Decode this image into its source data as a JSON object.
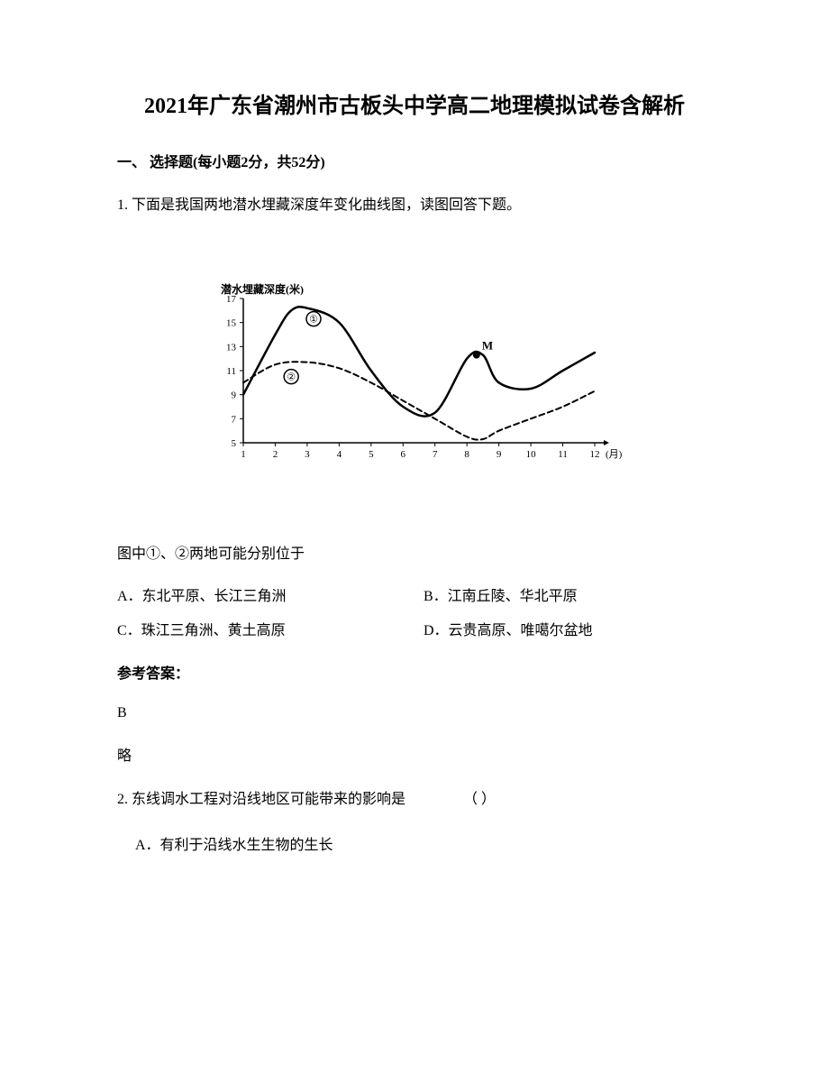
{
  "title": "2021年广东省潮州市古板头中学高二地理模拟试卷含解析",
  "section_header": "一、 选择题(每小题2分，共52分)",
  "question1": {
    "number": "1.",
    "text": "下面是我国两地潜水埋藏深度年变化曲线图，读图回答下题。",
    "sub_question": "图中①、②两地可能分别位于",
    "options": {
      "A": "A．东北平原、长江三角洲",
      "B": "B．江南丘陵、华北平原",
      "C": "C．珠江三角洲、黄土高原",
      "D": "D．云贵高原、唯噶尔盆地"
    }
  },
  "chart": {
    "type": "line",
    "y_axis_title": "潜水埋藏深度(米)",
    "x_axis_title": "(月)",
    "x_values": [
      1,
      2,
      3,
      4,
      5,
      6,
      7,
      8,
      9,
      10,
      11,
      12
    ],
    "y_ticks": [
      5,
      7,
      9,
      11,
      13,
      15,
      17
    ],
    "ylim": [
      5,
      17
    ],
    "xlim": [
      1,
      12
    ],
    "series": [
      {
        "name": "①",
        "label_circle": "①",
        "label_pos": {
          "x": 3.2,
          "y": 15.3
        },
        "style": "solid",
        "line_width": 2.5,
        "color": "#000000",
        "points": [
          {
            "x": 1,
            "y": 9
          },
          {
            "x": 2,
            "y": 14
          },
          {
            "x": 2.5,
            "y": 16
          },
          {
            "x": 3,
            "y": 16.2
          },
          {
            "x": 4,
            "y": 15
          },
          {
            "x": 5,
            "y": 11
          },
          {
            "x": 6,
            "y": 8
          },
          {
            "x": 7,
            "y": 7.5
          },
          {
            "x": 8,
            "y": 12
          },
          {
            "x": 8.5,
            "y": 12.3
          },
          {
            "x": 9,
            "y": 10
          },
          {
            "x": 10,
            "y": 9.5
          },
          {
            "x": 11,
            "y": 11
          },
          {
            "x": 12,
            "y": 12.5
          }
        ],
        "marker": {
          "label": "M",
          "x": 8.3,
          "y": 12.3,
          "color": "#000000"
        }
      },
      {
        "name": "②",
        "label_circle": "②",
        "label_pos": {
          "x": 2.5,
          "y": 10.5
        },
        "style": "dashed",
        "line_width": 2,
        "color": "#000000",
        "dash_array": "6,4",
        "points": [
          {
            "x": 1,
            "y": 10
          },
          {
            "x": 2,
            "y": 11.5
          },
          {
            "x": 3,
            "y": 11.7
          },
          {
            "x": 4,
            "y": 11.2
          },
          {
            "x": 5,
            "y": 10
          },
          {
            "x": 6,
            "y": 8.5
          },
          {
            "x": 7,
            "y": 7
          },
          {
            "x": 8,
            "y": 5.5
          },
          {
            "x": 8.5,
            "y": 5.3
          },
          {
            "x": 9,
            "y": 6
          },
          {
            "x": 10,
            "y": 7
          },
          {
            "x": 11,
            "y": 8
          },
          {
            "x": 12,
            "y": 9.3
          }
        ]
      }
    ],
    "background_color": "#ffffff",
    "axis_color": "#000000",
    "text_color": "#000000",
    "font_size": 11
  },
  "answer_label": "参考答案：",
  "answer1": "B",
  "answer1_note": "略",
  "question2": {
    "number": "2.",
    "text": "东线调水工程对沿线地区可能带来的影响是",
    "blank": "（    ）",
    "option_A": "A．有利于沿线水生生物的生长"
  }
}
